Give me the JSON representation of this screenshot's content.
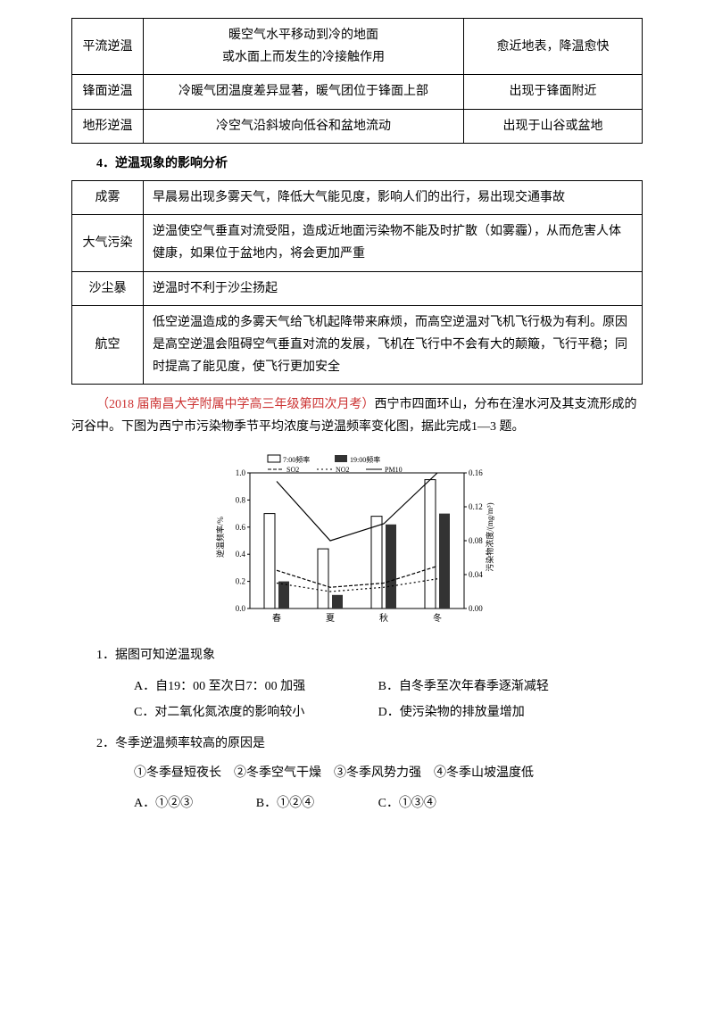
{
  "table1": {
    "rows": [
      {
        "label": "平流逆温",
        "desc": "暖空气水平移动到冷的地面\n或水面上而发生的冷接触作用",
        "note": "愈近地表，降温愈快"
      },
      {
        "label": "锋面逆温",
        "desc": "冷暖气团温度差异显著，暖气团位于锋面上部",
        "note": "出现于锋面附近"
      },
      {
        "label": "地形逆温",
        "desc": "冷空气沿斜坡向低谷和盆地流动",
        "note": "出现于山谷或盆地"
      }
    ]
  },
  "section_title": "4．逆温现象的影响分析",
  "table2": {
    "rows": [
      {
        "label": "成雾",
        "desc": "早晨易出现多雾天气，降低大气能见度，影响人们的出行，易出现交通事故"
      },
      {
        "label": "大气污染",
        "desc": "逆温使空气垂直对流受阻，造成近地面污染物不能及时扩散（如雾霾），从而危害人体健康，如果位于盆地内，将会更加严重"
      },
      {
        "label": "沙尘暴",
        "desc": "逆温时不利于沙尘扬起"
      },
      {
        "label": "航空",
        "desc": "低空逆温造成的多雾天气给飞机起降带来麻烦，而高空逆温对飞机飞行极为有利。原因是高空逆温会阻碍空气垂直对流的发展，飞机在飞行中不会有大的颠簸，飞行平稳；同时提高了能见度，使飞行更加安全"
      }
    ]
  },
  "exam": {
    "source": "（2018 届南昌大学附属中学高三年级第四次月考）",
    "intro1": "西宁市四面环山，分布在湟水河及其支流形成的河谷中。下图为西宁市污染物季节平均浓度与逆温频率变化图，据此完成1—3 题。"
  },
  "chart": {
    "type": "bar_line",
    "legend": [
      "7:00频率",
      "19:00频率",
      "SO2",
      "NO2",
      "PM10"
    ],
    "categories": [
      "春",
      "夏",
      "秋",
      "冬"
    ],
    "y_left_label": "逆温频率/%",
    "y_left_min": 0,
    "y_left_max": 1.0,
    "y_left_ticks": [
      0,
      0.2,
      0.4,
      0.6,
      0.8,
      1.0
    ],
    "y_right_label": "污染物浓度/(mg/m³)",
    "y_right_min": 0,
    "y_right_max": 0.16,
    "y_right_ticks": [
      0,
      0.04,
      0.08,
      0.12,
      0.16
    ],
    "bar_7": [
      0.7,
      0.44,
      0.68,
      0.95
    ],
    "bar_19": [
      0.2,
      0.1,
      0.62,
      0.7
    ],
    "so2": [
      0.045,
      0.025,
      0.03,
      0.05
    ],
    "no2": [
      0.03,
      0.02,
      0.025,
      0.035
    ],
    "pm10": [
      0.15,
      0.08,
      0.1,
      0.16
    ],
    "colors": {
      "bar7": "#ffffff",
      "bar7_stroke": "#000",
      "bar19": "#333333",
      "so2": "#000",
      "no2": "#000",
      "pm10": "#000",
      "grid": "#888"
    }
  },
  "questions": [
    {
      "stem": "1．据图可知逆温现象",
      "opts": [
        {
          "k": "A",
          "t": "自19：00 至次日7：00 加强"
        },
        {
          "k": "B",
          "t": "自冬季至次年春季逐渐减轻"
        },
        {
          "k": "C",
          "t": "对二氧化氮浓度的影响较小"
        },
        {
          "k": "D",
          "t": "使污染物的排放量增加"
        }
      ],
      "layout": "half"
    },
    {
      "stem": "2．冬季逆温频率较高的原因是",
      "sub": "①冬季昼短夜长　②冬季空气干燥　③冬季风势力强　④冬季山坡温度低",
      "opts": [
        {
          "k": "A",
          "t": "①②③"
        },
        {
          "k": "B",
          "t": "①②④"
        },
        {
          "k": "C",
          "t": "①③④"
        }
      ],
      "layout": "quarter"
    }
  ]
}
